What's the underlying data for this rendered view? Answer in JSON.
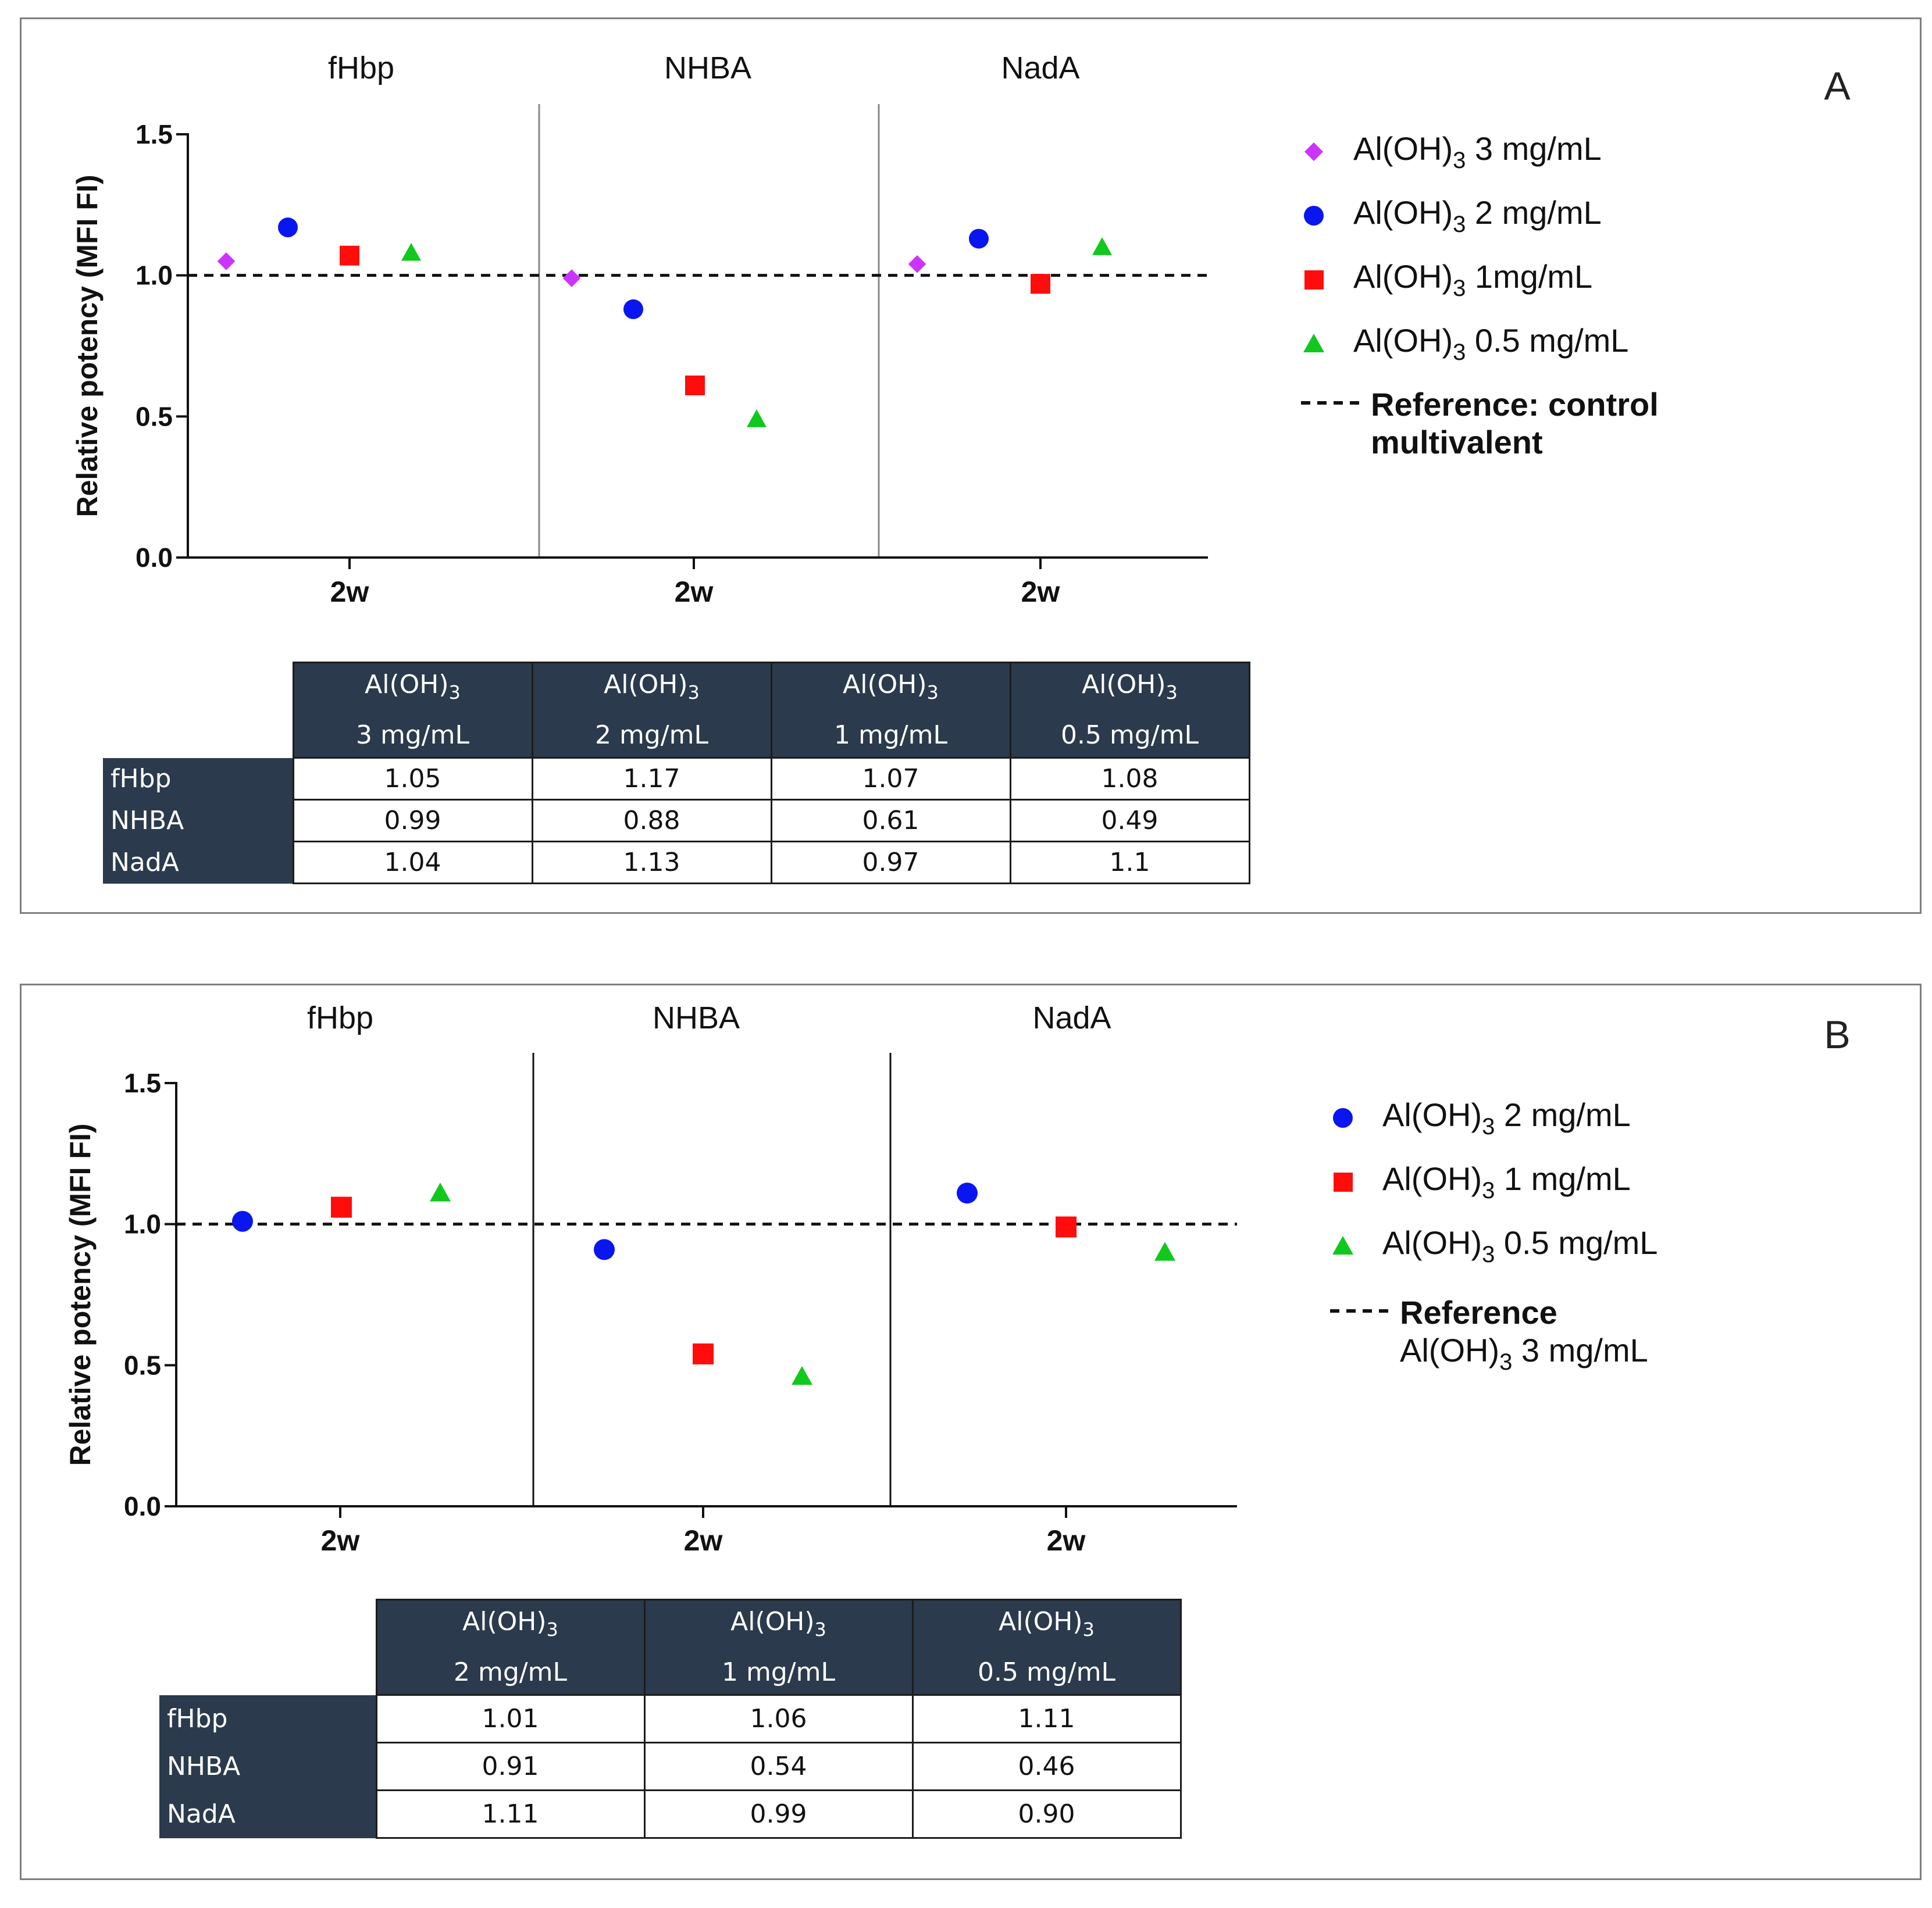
{
  "chart_data": [
    {
      "type": "scatter",
      "panel_label": "A",
      "facets": [
        "fHbp",
        "NHBA",
        "NadA"
      ],
      "x_tick_label": "2w",
      "ylabel": "Relative potency (MFI FI)",
      "ylim": [
        0.0,
        1.5
      ],
      "yticks": [
        "0.0",
        "0.5",
        "1.0",
        "1.5"
      ],
      "reference_value": 1.0,
      "series": [
        {
          "name": "Al(OH)3 3 mg/mL",
          "legend_main": "Al(OH)",
          "legend_sub": "3",
          "legend_rest": " 3 mg/mL",
          "marker": "diamond",
          "color": "#cc33ff",
          "values": [
            1.05,
            0.99,
            1.04
          ]
        },
        {
          "name": "Al(OH)3 2 mg/mL",
          "legend_main": "Al(OH)",
          "legend_sub": "3",
          "legend_rest": " 2 mg/mL",
          "marker": "circle",
          "color": "#0a16f0",
          "values": [
            1.17,
            0.88,
            1.13
          ]
        },
        {
          "name": "Al(OH)3 1mg/mL",
          "legend_main": "Al(OH)",
          "legend_sub": "3",
          "legend_rest": " 1mg/mL",
          "marker": "square",
          "color": "#ff0d0d",
          "values": [
            1.07,
            0.61,
            0.97
          ]
        },
        {
          "name": "Al(OH)3 0.5 mg/mL",
          "legend_main": "Al(OH)",
          "legend_sub": "3",
          "legend_rest": " 0.5 mg/mL",
          "marker": "triangle",
          "color": "#10c81e",
          "values": [
            1.08,
            0.49,
            1.1
          ]
        }
      ],
      "reference_legend": {
        "line1": "Reference: control",
        "line2": "multivalent"
      },
      "table": {
        "col_main": "Al(OH)",
        "col_sub": "3",
        "col_doses": [
          "3 mg/mL",
          "2 mg/mL",
          "1 mg/mL",
          "0.5 mg/mL"
        ],
        "rows": [
          {
            "label": "fHbp",
            "values": [
              "1.05",
              "1.17",
              "1.07",
              "1.08"
            ]
          },
          {
            "label": "NHBA",
            "values": [
              "0.99",
              "0.88",
              "0.61",
              "0.49"
            ]
          },
          {
            "label": "NadA",
            "values": [
              "1.04",
              "1.13",
              "0.97",
              "1.1"
            ]
          }
        ]
      }
    },
    {
      "type": "scatter",
      "panel_label": "B",
      "facets": [
        "fHbp",
        "NHBA",
        "NadA"
      ],
      "x_tick_label": "2w",
      "ylabel": "Relative potency (MFI FI)",
      "ylim": [
        0.0,
        1.5
      ],
      "yticks": [
        "0.0",
        "0.5",
        "1.0",
        "1.5"
      ],
      "reference_value": 1.0,
      "series": [
        {
          "name": "Al(OH)3 2 mg/mL",
          "legend_main": "Al(OH)",
          "legend_sub": "3",
          "legend_rest": " 2 mg/mL",
          "marker": "circle",
          "color": "#0a16f0",
          "values": [
            1.01,
            0.91,
            1.11
          ]
        },
        {
          "name": "Al(OH)3 1 mg/mL",
          "legend_main": "Al(OH)",
          "legend_sub": "3",
          "legend_rest": " 1 mg/mL",
          "marker": "square",
          "color": "#ff0d0d",
          "values": [
            1.06,
            0.54,
            0.99
          ]
        },
        {
          "name": "Al(OH)3 0.5 mg/mL",
          "legend_main": "Al(OH)",
          "legend_sub": "3",
          "legend_rest": " 0.5 mg/mL",
          "marker": "triangle",
          "color": "#10c81e",
          "values": [
            1.11,
            0.46,
            0.9
          ]
        }
      ],
      "reference_legend": {
        "line1": "Reference",
        "line2_main": "Al(OH)",
        "line2_sub": "3",
        "line2_rest": " 3 mg/mL"
      },
      "table": {
        "col_main": "Al(OH)",
        "col_sub": "3",
        "col_doses": [
          "2 mg/mL",
          "1 mg/mL",
          "0.5 mg/mL"
        ],
        "rows": [
          {
            "label": "fHbp",
            "values": [
              "1.01",
              "1.06",
              "1.11"
            ]
          },
          {
            "label": "NHBA",
            "values": [
              "0.91",
              "0.54",
              "0.46"
            ]
          },
          {
            "label": "NadA",
            "values": [
              "1.11",
              "0.99",
              "0.90"
            ]
          }
        ]
      }
    }
  ]
}
